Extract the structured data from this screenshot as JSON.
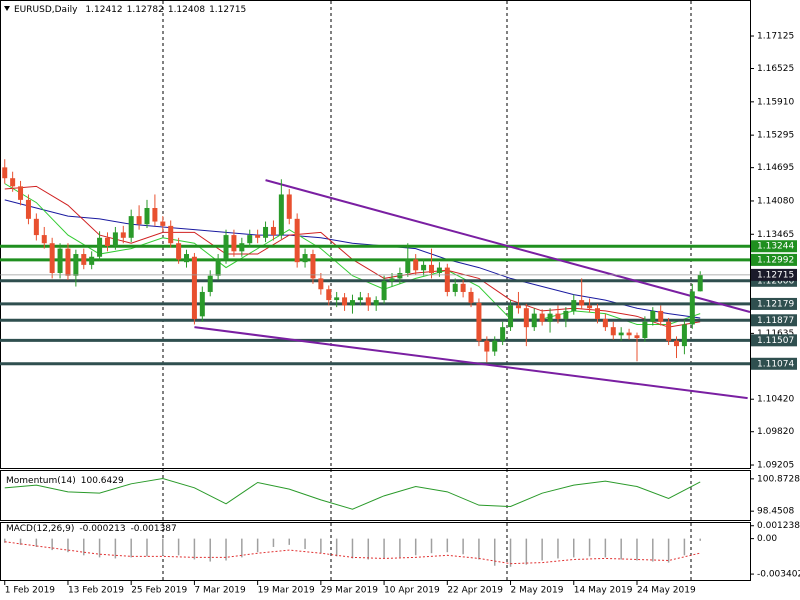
{
  "chart_data": {
    "type": "candlestick",
    "symbol": "EURUSD,Daily",
    "up_color": "#2a9a2a",
    "down_color": "#e8502f",
    "xlim": [
      -0.6,
      94.3
    ],
    "ylim": [
      1.0915,
      1.1779
    ],
    "yticks": [
      1.17125,
      1.16525,
      {
        "value": 1.1591,
        "label": "1.15910"
      },
      1.15295,
      1.14695,
      {
        "value": 1.1408,
        "label": "1.14080"
      },
      1.13465,
      1.11635,
      {
        "value": 1.1042,
        "label": "1.10420"
      },
      {
        "value": 1.0982,
        "label": "1.09820"
      },
      1.09205
    ],
    "xlabels": [
      {
        "value": 0,
        "label": "1 Feb 2019"
      },
      {
        "value": 8,
        "label": "13 Feb 2019"
      },
      {
        "value": 16,
        "label": "25 Feb 2019"
      },
      {
        "value": 24,
        "label": "7 Mar 2019"
      },
      {
        "value": 32,
        "label": "19 Mar 2019"
      },
      {
        "value": 40,
        "label": "29 Mar 2019"
      },
      {
        "value": 48,
        "label": "10 Apr 2019"
      },
      {
        "value": 56,
        "label": "22 Apr 2019"
      },
      {
        "value": 64,
        "label": "2 May 2019"
      },
      {
        "value": 72,
        "label": "14 May 2019"
      },
      {
        "value": 80,
        "label": "24 May 2019"
      }
    ],
    "ohlc": [
      [
        1.147,
        1.1485,
        1.144,
        1.145
      ],
      [
        1.145,
        1.1462,
        1.1425,
        1.1435
      ],
      [
        1.1435,
        1.1445,
        1.14,
        1.141
      ],
      [
        1.141,
        1.142,
        1.1365,
        1.1375
      ],
      [
        1.1375,
        1.1385,
        1.1335,
        1.1345
      ],
      [
        1.1345,
        1.136,
        1.132,
        1.133
      ],
      [
        1.133,
        1.134,
        1.1265,
        1.1275
      ],
      [
        1.1275,
        1.133,
        1.1265,
        1.132
      ],
      [
        1.132,
        1.133,
        1.1262,
        1.127
      ],
      [
        1.127,
        1.1318,
        1.125,
        1.131
      ],
      [
        1.131,
        1.132,
        1.1282,
        1.129
      ],
      [
        1.129,
        1.1315,
        1.1282,
        1.1305
      ],
      [
        1.1305,
        1.1352,
        1.1298,
        1.134
      ],
      [
        1.134,
        1.135,
        1.1315,
        1.1325
      ],
      [
        1.1325,
        1.136,
        1.1318,
        1.135
      ],
      [
        1.135,
        1.1362,
        1.133,
        1.134
      ],
      [
        1.134,
        1.1392,
        1.1332,
        1.138
      ],
      [
        1.138,
        1.14,
        1.1355,
        1.1365
      ],
      [
        1.1365,
        1.141,
        1.1358,
        1.1395
      ],
      [
        1.1395,
        1.142,
        1.1362,
        1.137
      ],
      [
        1.137,
        1.138,
        1.1352,
        1.1362
      ],
      [
        1.1362,
        1.1372,
        1.1322,
        1.133
      ],
      [
        1.133,
        1.134,
        1.1292,
        1.13
      ],
      [
        1.1295,
        1.1318,
        1.1285,
        1.131
      ],
      [
        1.1305,
        1.1312,
        1.118,
        1.119
      ],
      [
        1.1195,
        1.125,
        1.1185,
        1.124
      ],
      [
        1.124,
        1.128,
        1.1232,
        1.127
      ],
      [
        1.127,
        1.131,
        1.1262,
        1.13
      ],
      [
        1.13,
        1.1355,
        1.1292,
        1.1345
      ],
      [
        1.1345,
        1.1355,
        1.1305,
        1.1315
      ],
      [
        1.1315,
        1.134,
        1.1305,
        1.133
      ],
      [
        1.133,
        1.1355,
        1.1322,
        1.1345
      ],
      [
        1.1345,
        1.1355,
        1.133,
        1.134
      ],
      [
        1.134,
        1.137,
        1.1332,
        1.136
      ],
      [
        1.136,
        1.1372,
        1.1335,
        1.1345
      ],
      [
        1.1345,
        1.1448,
        1.1338,
        1.142
      ],
      [
        1.142,
        1.143,
        1.1365,
        1.1375
      ],
      [
        1.1375,
        1.1385,
        1.1285,
        1.1295
      ],
      [
        1.1295,
        1.132,
        1.1285,
        1.131
      ],
      [
        1.131,
        1.1318,
        1.1255,
        1.1265
      ],
      [
        1.1265,
        1.1275,
        1.1235,
        1.1245
      ],
      [
        1.1245,
        1.1252,
        1.1215,
        1.1225
      ],
      [
        1.1225,
        1.124,
        1.1212,
        1.123
      ],
      [
        1.123,
        1.1238,
        1.1205,
        1.1215
      ],
      [
        1.1215,
        1.1235,
        1.12,
        1.1225
      ],
      [
        1.1225,
        1.124,
        1.1215,
        1.123
      ],
      [
        1.123,
        1.1238,
        1.1205,
        1.1215
      ],
      [
        1.1215,
        1.1232,
        1.1205,
        1.1225
      ],
      [
        1.1225,
        1.127,
        1.1218,
        1.126
      ],
      [
        1.126,
        1.1275,
        1.125,
        1.1265
      ],
      [
        1.1265,
        1.1285,
        1.1255,
        1.1275
      ],
      [
        1.1275,
        1.133,
        1.1268,
        1.13
      ],
      [
        1.13,
        1.131,
        1.1272,
        1.128
      ],
      [
        1.128,
        1.13,
        1.127,
        1.129
      ],
      [
        1.129,
        1.132,
        1.1265,
        1.1275
      ],
      [
        1.1275,
        1.1295,
        1.1268,
        1.1285
      ],
      [
        1.1285,
        1.1292,
        1.1232,
        1.124
      ],
      [
        1.124,
        1.1265,
        1.1232,
        1.1255
      ],
      [
        1.1255,
        1.1262,
        1.123,
        1.124
      ],
      [
        1.124,
        1.1248,
        1.1212,
        1.122
      ],
      [
        1.122,
        1.1228,
        1.114,
        1.115
      ],
      [
        1.115,
        1.1158,
        1.111,
        1.113
      ],
      [
        1.113,
        1.1158,
        1.1122,
        1.115
      ],
      [
        1.115,
        1.1185,
        1.1142,
        1.1175
      ],
      [
        1.1175,
        1.1225,
        1.1168,
        1.1215
      ],
      [
        1.1215,
        1.124,
        1.12,
        1.121
      ],
      [
        1.121,
        1.1218,
        1.114,
        1.1175
      ],
      [
        1.1175,
        1.121,
        1.1168,
        1.12
      ],
      [
        1.12,
        1.1208,
        1.1178,
        1.1185
      ],
      [
        1.1185,
        1.121,
        1.1165,
        1.12
      ],
      [
        1.12,
        1.1215,
        1.1182,
        1.119
      ],
      [
        1.119,
        1.1212,
        1.1175,
        1.1205
      ],
      [
        1.1205,
        1.1235,
        1.1198,
        1.1225
      ],
      [
        1.1225,
        1.1265,
        1.1208,
        1.1215
      ],
      [
        1.1215,
        1.1228,
        1.1202,
        1.121
      ],
      [
        1.121,
        1.1218,
        1.1182,
        1.119
      ],
      [
        1.119,
        1.12,
        1.1168,
        1.1175
      ],
      [
        1.1175,
        1.1185,
        1.1152,
        1.116
      ],
      [
        1.116,
        1.1175,
        1.115,
        1.1165
      ],
      [
        1.1165,
        1.1172,
        1.1152,
        1.116
      ],
      [
        1.116,
        1.1165,
        1.1112,
        1.1155
      ],
      [
        1.1155,
        1.1195,
        1.1148,
        1.1185
      ],
      [
        1.1185,
        1.1212,
        1.1178,
        1.1205
      ],
      [
        1.1205,
        1.1215,
        1.1178,
        1.1185
      ],
      [
        1.1185,
        1.1192,
        1.1142,
        1.115
      ],
      [
        1.115,
        1.1158,
        1.1118,
        1.114
      ],
      [
        1.114,
        1.1188,
        1.1125,
        1.118
      ],
      [
        1.118,
        1.1255,
        1.1172,
        1.1241
      ],
      [
        1.12412,
        1.12782,
        1.12408,
        1.12715
      ]
    ],
    "levels": [
      {
        "value": 1.13244,
        "color": "#1f8f1f"
      },
      {
        "value": 1.12992,
        "color": "#1f8f1f"
      },
      {
        "value": 1.12606,
        "color": "#2f4f4f"
      },
      {
        "value": 1.12179,
        "color": "#2f4f4f"
      },
      {
        "value": 1.11877,
        "color": "#2f4f4f"
      },
      {
        "value": 1.11507,
        "color": "#2f4f4f"
      },
      {
        "value": 1.11074,
        "color": "#2f4f4f"
      }
    ],
    "trendlines": [
      {
        "color": "#7a1fa2",
        "x": [
          33,
          94.3
        ],
        "y": [
          1.14465,
          1.1203
        ]
      },
      {
        "color": "#7a1fa2",
        "x": [
          24,
          94
        ],
        "y": [
          1.1175,
          1.1044
        ]
      }
    ],
    "x4": [
      0,
      4,
      8,
      12,
      16,
      20,
      24,
      28,
      32,
      36,
      40,
      44,
      48,
      52,
      56,
      60,
      64,
      68,
      72,
      76,
      80,
      84,
      88
    ],
    "moving_averages": [
      {
        "color": "#1a1aa0",
        "values": [
          1.141,
          1.1395,
          1.138,
          1.1375,
          1.1365,
          1.136,
          1.1355,
          1.135,
          1.1345,
          1.1345,
          1.134,
          1.133,
          1.1325,
          1.132,
          1.13,
          1.1285,
          1.1265,
          1.125,
          1.1235,
          1.1225,
          1.121,
          1.12,
          1.1192
        ]
      },
      {
        "color": "#33cc33",
        "values": [
          1.144,
          1.1405,
          1.1345,
          1.131,
          1.132,
          1.134,
          1.133,
          1.1285,
          1.132,
          1.1355,
          1.132,
          1.127,
          1.1245,
          1.1265,
          1.128,
          1.125,
          1.119,
          1.119,
          1.1205,
          1.12,
          1.118,
          1.118,
          1.12
        ]
      },
      {
        "color": "#d02020",
        "values": [
          1.143,
          1.1435,
          1.14,
          1.1345,
          1.133,
          1.135,
          1.135,
          1.131,
          1.131,
          1.1345,
          1.135,
          1.13,
          1.1265,
          1.1275,
          1.128,
          1.1265,
          1.1225,
          1.1205,
          1.121,
          1.1205,
          1.1195,
          1.1175,
          1.1185
        ]
      }
    ],
    "momentum": {
      "title": "Momentum(14)",
      "color": "#2a9a2a",
      "ylim": [
        97.79,
        101.46
      ],
      "yticks": [
        100.8728,
        98.4508
      ],
      "values": [
        100.2,
        100.4,
        99.9,
        99.8,
        100.5,
        100.9,
        100.2,
        99.0,
        100.6,
        100.1,
        99.3,
        98.6,
        99.6,
        100.3,
        99.9,
        98.9,
        98.8,
        99.8,
        100.4,
        100.7,
        100.3,
        99.4,
        100.6429
      ]
    },
    "x2": [
      0,
      2,
      4,
      6,
      8,
      10,
      12,
      14,
      16,
      18,
      20,
      22,
      24,
      26,
      28,
      30,
      32,
      34,
      36,
      38,
      40,
      42,
      44,
      46,
      48,
      50,
      52,
      54,
      56,
      58,
      60,
      62,
      64,
      66,
      68,
      70,
      72,
      74,
      76,
      78,
      80,
      82,
      84,
      86,
      88
    ],
    "macd": {
      "title": "MACD(12,26,9)",
      "hist_color": "#a0a0a0",
      "signal_color": "#e03030",
      "ylim": [
        -0.00397,
        0.0015
      ],
      "yticks": [
        0.001238,
        {
          "value": 0,
          "label": "0.00"
        },
        -0.003402
      ],
      "histogram": [
        -0.0004,
        -0.0006,
        -0.0008,
        -0.0011,
        -0.0013,
        -0.0016,
        -0.0018,
        -0.0019,
        -0.0018,
        -0.0017,
        -0.0016,
        -0.0016,
        -0.002,
        -0.0022,
        -0.0021,
        -0.0018,
        -0.0013,
        -0.0008,
        -0.0006,
        -0.001,
        -0.0014,
        -0.0017,
        -0.0019,
        -0.002,
        -0.0019,
        -0.0018,
        -0.0016,
        -0.0014,
        -0.0013,
        -0.0015,
        -0.002,
        -0.0026,
        -0.0027,
        -0.0025,
        -0.0021,
        -0.0019,
        -0.0018,
        -0.0017,
        -0.0018,
        -0.002,
        -0.0021,
        -0.0022,
        -0.0023,
        -0.0016,
        -0.000213
      ],
      "signal": [
        -0.0003,
        -0.0007,
        -0.0011,
        -0.0015,
        -0.0017,
        -0.0017,
        -0.0018,
        -0.0018,
        -0.0014,
        -0.0011,
        -0.0014,
        -0.0018,
        -0.0019,
        -0.0018,
        -0.0016,
        -0.0019,
        -0.0024,
        -0.0023,
        -0.002,
        -0.0019,
        -0.002,
        -0.0021,
        -0.001387
      ]
    }
  }
}
